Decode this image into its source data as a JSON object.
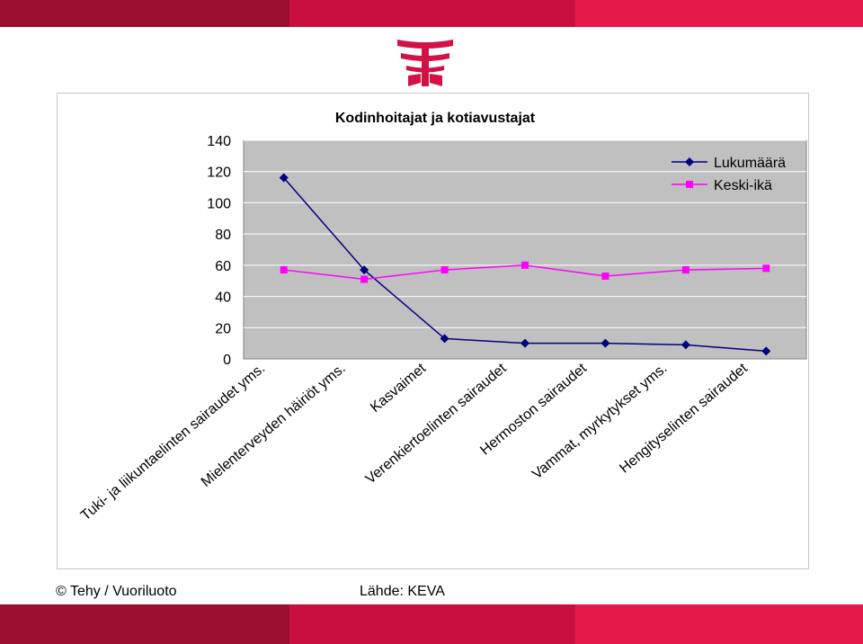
{
  "brand": {
    "colors": {
      "dark_red": "#9b0e30",
      "red": "#c8103e",
      "pink": "#e51a4a"
    }
  },
  "chart_data": {
    "type": "line",
    "title": "Kodinhoitajat ja kotiavustajat",
    "categories": [
      "Tuki- ja liikuntaelinten sairaudet yms.",
      "Mielenterveyden häiriöt yms.",
      "Kasvaimet",
      "Verenkiertoelinten sairaudet",
      "Hermoston sairaudet",
      "Vammat, myrkytykset yms.",
      "Hengityselinten sairaudet"
    ],
    "series": [
      {
        "name": "Lukumäärä",
        "values": [
          116,
          57,
          13,
          10,
          10,
          9,
          5
        ],
        "color": "#000080",
        "marker": "diamond"
      },
      {
        "name": "Keski-ikä",
        "values": [
          57,
          51,
          57,
          60,
          53,
          57,
          58
        ],
        "color": "#ff00ff",
        "marker": "square"
      }
    ],
    "yticks": [
      0,
      20,
      40,
      60,
      80,
      100,
      120,
      140
    ],
    "ylim": [
      0,
      140
    ],
    "grid": true,
    "legend_position": "top-right",
    "plot_background": "#c0c0c0"
  },
  "footer": {
    "copyright": "© Tehy / Vuoriluoto",
    "source": "Lähde: KEVA"
  }
}
